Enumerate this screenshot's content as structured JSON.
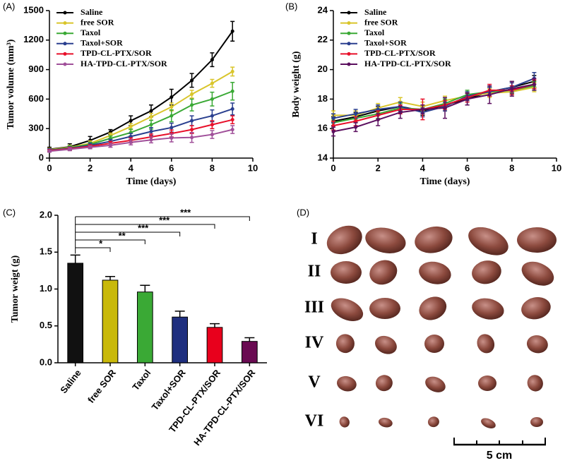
{
  "chart_data": [
    {
      "type": "line",
      "panel_label": "(A)",
      "x_label": "Time (days)",
      "y_label": "Tumor volume (mm³)",
      "x": [
        0,
        1,
        2,
        3,
        4,
        5,
        6,
        7,
        8,
        9
      ],
      "xlim": [
        0,
        10
      ],
      "xticks": [
        0,
        2,
        4,
        6,
        8,
        10
      ],
      "ylim": [
        0,
        1500
      ],
      "yticks": [
        0,
        300,
        600,
        900,
        1200,
        1500
      ],
      "series": [
        {
          "name": "Saline",
          "color": "#000000",
          "values": [
            90,
            115,
            180,
            265,
            380,
            480,
            620,
            790,
            1000,
            1290
          ],
          "errors": [
            20,
            30,
            40,
            25,
            50,
            60,
            80,
            70,
            70,
            100
          ]
        },
        {
          "name": "free SOR",
          "color": "#d9c52b",
          "values": [
            85,
            110,
            150,
            230,
            320,
            420,
            520,
            650,
            760,
            880
          ],
          "errors": [
            15,
            20,
            25,
            25,
            30,
            35,
            40,
            40,
            40,
            45
          ]
        },
        {
          "name": "Taxol",
          "color": "#3aa935",
          "values": [
            80,
            105,
            140,
            200,
            260,
            340,
            430,
            540,
            600,
            680
          ],
          "errors": [
            15,
            20,
            20,
            25,
            35,
            45,
            60,
            60,
            70,
            90
          ]
        },
        {
          "name": "Taxol+SOR",
          "color": "#2a3f8f",
          "values": [
            80,
            100,
            130,
            170,
            220,
            270,
            310,
            380,
            430,
            500
          ],
          "errors": [
            15,
            15,
            20,
            20,
            30,
            40,
            45,
            50,
            60,
            60
          ]
        },
        {
          "name": "TPD-CL-PTX/SOR",
          "color": "#e8102a",
          "values": [
            75,
            95,
            120,
            150,
            180,
            215,
            250,
            290,
            340,
            390
          ],
          "errors": [
            10,
            15,
            15,
            20,
            25,
            30,
            35,
            40,
            40,
            40
          ]
        },
        {
          "name": "HA-TPD-CL-PTX/SOR",
          "color": "#a0509a",
          "values": [
            70,
            90,
            110,
            130,
            160,
            185,
            205,
            210,
            240,
            290
          ],
          "errors": [
            10,
            15,
            15,
            20,
            25,
            30,
            40,
            50,
            40,
            40
          ]
        }
      ]
    },
    {
      "type": "line",
      "panel_label": "(B)",
      "x_label": "Time (days)",
      "y_label": "Body weight (g)",
      "x": [
        0,
        1,
        2,
        3,
        4,
        5,
        6,
        7,
        8,
        9
      ],
      "xlim": [
        0,
        10
      ],
      "xticks": [
        0,
        2,
        4,
        6,
        8,
        10
      ],
      "ylim": [
        14,
        24
      ],
      "yticks": [
        14,
        16,
        18,
        20,
        22,
        24
      ],
      "series": [
        {
          "name": "Saline",
          "color": "#000000",
          "values": [
            16.5,
            16.8,
            17.2,
            17.5,
            17.2,
            17.6,
            18.0,
            18.5,
            18.8,
            19.2
          ],
          "errors": [
            0.3,
            0.3,
            0.3,
            0.3,
            0.3,
            0.4,
            0.4,
            0.3,
            0.4,
            0.4
          ]
        },
        {
          "name": "free SOR",
          "color": "#d9c52b",
          "values": [
            16.9,
            16.9,
            17.4,
            17.8,
            17.5,
            17.9,
            18.2,
            18.4,
            18.5,
            18.8
          ],
          "errors": [
            0.3,
            0.3,
            0.3,
            0.3,
            0.3,
            0.3,
            0.3,
            0.3,
            0.3,
            0.3
          ]
        },
        {
          "name": "Taxol",
          "color": "#3aa935",
          "values": [
            16.4,
            16.7,
            17.0,
            17.4,
            17.3,
            17.7,
            18.3,
            18.5,
            18.6,
            18.9
          ],
          "errors": [
            0.3,
            0.3,
            0.3,
            0.3,
            0.3,
            0.3,
            0.3,
            0.3,
            0.3,
            0.3
          ]
        },
        {
          "name": "Taxol+SOR",
          "color": "#2a3f8f",
          "values": [
            16.7,
            17.0,
            17.3,
            17.5,
            17.1,
            17.5,
            18.2,
            18.5,
            18.8,
            19.4
          ],
          "errors": [
            0.3,
            0.3,
            0.3,
            0.3,
            0.3,
            0.3,
            0.3,
            0.3,
            0.3,
            0.4
          ]
        },
        {
          "name": "TPD-CL-PTX/SOR",
          "color": "#e8102a",
          "values": [
            16.2,
            16.5,
            16.9,
            17.3,
            17.3,
            17.6,
            18.1,
            18.6,
            18.6,
            19.0
          ],
          "errors": [
            0.3,
            0.3,
            0.3,
            0.3,
            0.7,
            0.3,
            0.3,
            0.4,
            0.3,
            0.3
          ]
        },
        {
          "name": "HA-TPD-CL-PTX/SOR",
          "color": "#5b0f5f",
          "values": [
            15.8,
            16.1,
            16.6,
            17.1,
            17.3,
            17.4,
            18.0,
            18.3,
            18.7,
            19.0
          ],
          "errors": [
            0.3,
            0.3,
            0.4,
            0.4,
            0.3,
            0.7,
            0.4,
            0.6,
            0.5,
            0.4
          ]
        }
      ]
    },
    {
      "type": "bar",
      "panel_label": "(C)",
      "y_label": "Tumor weigt (g)",
      "categories": [
        "Saline",
        "free SOR",
        "Taxol",
        "Taxol+SOR",
        "TPD-CL-PTX/SOR",
        "HA-TPD-CL-PTX/SOR"
      ],
      "values": [
        1.35,
        1.12,
        0.96,
        0.62,
        0.48,
        0.29
      ],
      "errors": [
        0.11,
        0.05,
        0.09,
        0.08,
        0.05,
        0.05
      ],
      "colors": [
        "#111111",
        "#c9b90a",
        "#3aa935",
        "#1f2f7f",
        "#e8001c",
        "#6a0b52"
      ],
      "significance": [
        null,
        "*",
        "**",
        "***",
        "***",
        "***"
      ],
      "ylim": [
        0,
        2
      ],
      "yticks": [
        {
          "value": 0,
          "label": "0.0"
        },
        0.5,
        {
          "value": 1,
          "label": "1.0"
        },
        1.5,
        {
          "value": 2,
          "label": "2.0"
        }
      ]
    }
  ],
  "photo_panel": {
    "panel_label": "(D)",
    "rows": [
      "I",
      "II",
      "III",
      "IV",
      "V",
      "VI"
    ],
    "scale_label": "5 cm"
  }
}
